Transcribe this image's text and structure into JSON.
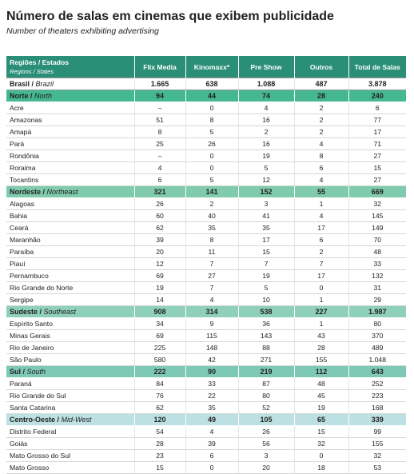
{
  "header": {
    "title": "Número de salas em cinemas que exibem publicidade",
    "subtitle": "Number of theaters exhibiting advertising"
  },
  "table": {
    "row_header": {
      "label": "Regiões / Estados",
      "label_en": "Regions / States"
    },
    "columns": [
      "Flix Media",
      "Kinomaxx*",
      "Pre Show",
      "Outros",
      "Total de Salas"
    ],
    "total": {
      "label": "Brasil /",
      "label_en": "Brazil",
      "values": [
        "1.665",
        "638",
        "1.088",
        "487",
        "3.878"
      ]
    },
    "regions": [
      {
        "label": "Norte /",
        "label_en": "North",
        "values": [
          "94",
          "44",
          "74",
          "28",
          "240"
        ],
        "states": [
          {
            "name": "Acre",
            "values": [
              "–",
              "0",
              "4",
              "2",
              "6"
            ]
          },
          {
            "name": "Amazonas",
            "values": [
              "51",
              "8",
              "16",
              "2",
              "77"
            ]
          },
          {
            "name": "Amapá",
            "values": [
              "8",
              "5",
              "2",
              "2",
              "17"
            ]
          },
          {
            "name": "Pará",
            "values": [
              "25",
              "26",
              "16",
              "4",
              "71"
            ]
          },
          {
            "name": "Rondônia",
            "values": [
              "–",
              "0",
              "19",
              "8",
              "27"
            ]
          },
          {
            "name": "Roraima",
            "values": [
              "4",
              "0",
              "5",
              "6",
              "15"
            ]
          },
          {
            "name": "Tocantins",
            "values": [
              "6",
              "5",
              "12",
              "4",
              "27"
            ]
          }
        ]
      },
      {
        "label": "Nordeste /",
        "label_en": "Northeast",
        "values": [
          "321",
          "141",
          "152",
          "55",
          "669"
        ],
        "states": [
          {
            "name": "Alagoas",
            "values": [
              "26",
              "2",
              "3",
              "1",
              "32"
            ]
          },
          {
            "name": "Bahia",
            "values": [
              "60",
              "40",
              "41",
              "4",
              "145"
            ]
          },
          {
            "name": "Ceará",
            "values": [
              "62",
              "35",
              "35",
              "17",
              "149"
            ]
          },
          {
            "name": "Maranhão",
            "values": [
              "39",
              "8",
              "17",
              "6",
              "70"
            ]
          },
          {
            "name": "Paraíba",
            "values": [
              "20",
              "11",
              "15",
              "2",
              "48"
            ]
          },
          {
            "name": "Piauí",
            "values": [
              "12",
              "7",
              "7",
              "7",
              "33"
            ]
          },
          {
            "name": "Pernambuco",
            "values": [
              "69",
              "27",
              "19",
              "17",
              "132"
            ]
          },
          {
            "name": "Rio Grande do Norte",
            "values": [
              "19",
              "7",
              "5",
              "0",
              "31"
            ]
          },
          {
            "name": "Sergipe",
            "values": [
              "14",
              "4",
              "10",
              "1",
              "29"
            ]
          }
        ]
      },
      {
        "label": "Sudeste /",
        "label_en": "Southeast",
        "values": [
          "908",
          "314",
          "538",
          "227",
          "1.987"
        ],
        "states": [
          {
            "name": "Espírito Santo",
            "values": [
              "34",
              "9",
              "36",
              "1",
              "80"
            ]
          },
          {
            "name": "Minas Gerais",
            "values": [
              "69",
              "115",
              "143",
              "43",
              "370"
            ]
          },
          {
            "name": "Rio de Janeiro",
            "values": [
              "225",
              "148",
              "88",
              "28",
              "489"
            ]
          },
          {
            "name": "São Paulo",
            "values": [
              "580",
              "42",
              "271",
              "155",
              "1.048"
            ]
          }
        ]
      },
      {
        "label": "Sul /",
        "label_en": "South",
        "values": [
          "222",
          "90",
          "219",
          "112",
          "643"
        ],
        "states": [
          {
            "name": "Paraná",
            "values": [
              "84",
              "33",
              "87",
              "48",
              "252"
            ]
          },
          {
            "name": "Rio Grande do Sul",
            "values": [
              "76",
              "22",
              "80",
              "45",
              "223"
            ]
          },
          {
            "name": "Santa Catarina",
            "values": [
              "62",
              "35",
              "52",
              "19",
              "168"
            ]
          }
        ]
      },
      {
        "label": "Centro-Oeste /",
        "label_en": "Mid-West",
        "values": [
          "120",
          "49",
          "105",
          "65",
          "339"
        ],
        "states": [
          {
            "name": "Distrito Federal",
            "values": [
              "54",
              "4",
              "26",
              "15",
              "99"
            ]
          },
          {
            "name": "Goiás",
            "values": [
              "28",
              "39",
              "56",
              "32",
              "155"
            ]
          },
          {
            "name": "Mato Grosso do Sul",
            "values": [
              "23",
              "6",
              "3",
              "0",
              "32"
            ]
          },
          {
            "name": "Mato Grosso",
            "values": [
              "15",
              "0",
              "20",
              "18",
              "53"
            ]
          }
        ]
      }
    ]
  }
}
